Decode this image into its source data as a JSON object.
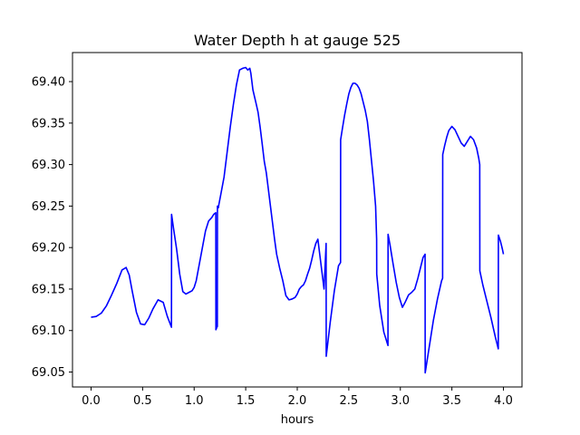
{
  "chart_data": {
    "type": "line",
    "title": "Water Depth h at gauge 525",
    "xlabel": "hours",
    "ylabel": "",
    "xlim": [
      -0.18,
      4.18
    ],
    "ylim": [
      69.032,
      69.435
    ],
    "grid": false,
    "line_color": "#0000ff",
    "xticks": [
      {
        "value": 0.0,
        "label": "0.0"
      },
      {
        "value": 0.5,
        "label": "0.5"
      },
      {
        "value": 1.0,
        "label": "1.0"
      },
      {
        "value": 1.5,
        "label": "1.5"
      },
      {
        "value": 2.0,
        "label": "2.0"
      },
      {
        "value": 2.5,
        "label": "2.5"
      },
      {
        "value": 3.0,
        "label": "3.0"
      },
      {
        "value": 3.5,
        "label": "3.5"
      },
      {
        "value": 4.0,
        "label": "4.0"
      }
    ],
    "yticks": [
      {
        "value": 69.05,
        "label": "69.05"
      },
      {
        "value": 69.1,
        "label": "69.10"
      },
      {
        "value": 69.15,
        "label": "69.15"
      },
      {
        "value": 69.2,
        "label": "69.20"
      },
      {
        "value": 69.25,
        "label": "69.25"
      },
      {
        "value": 69.3,
        "label": "69.30"
      },
      {
        "value": 69.35,
        "label": "69.35"
      },
      {
        "value": 69.4,
        "label": "69.40"
      }
    ],
    "series": [
      {
        "x": [
          0.0,
          0.05,
          0.1,
          0.15,
          0.2,
          0.25,
          0.3,
          0.34,
          0.37,
          0.4,
          0.44,
          0.48,
          0.52,
          0.56,
          0.6,
          0.65,
          0.7,
          0.74,
          0.78,
          0.781,
          0.8,
          0.83,
          0.86,
          0.89,
          0.92,
          0.95,
          0.98,
          1.0,
          1.02,
          1.05,
          1.08,
          1.11,
          1.14,
          1.17,
          1.19,
          1.21,
          1.211,
          1.22,
          1.225,
          1.226,
          1.235,
          1.24,
          1.26,
          1.29,
          1.32,
          1.35,
          1.38,
          1.41,
          1.44,
          1.47,
          1.5,
          1.52,
          1.54,
          1.55,
          1.57,
          1.6,
          1.62,
          1.64,
          1.66,
          1.68,
          1.7,
          1.72,
          1.74,
          1.76,
          1.78,
          1.8,
          1.83,
          1.86,
          1.89,
          1.92,
          1.95,
          1.98,
          2.0,
          2.02,
          2.04,
          2.06,
          2.08,
          2.1,
          2.12,
          2.14,
          2.16,
          2.18,
          2.2,
          2.22,
          2.24,
          2.26,
          2.28,
          2.281,
          2.32,
          2.36,
          2.4,
          2.42,
          2.421,
          2.44,
          2.46,
          2.48,
          2.5,
          2.52,
          2.54,
          2.56,
          2.58,
          2.6,
          2.62,
          2.64,
          2.66,
          2.68,
          2.7,
          2.72,
          2.74,
          2.76,
          2.77,
          2.771,
          2.8,
          2.84,
          2.88,
          2.881,
          2.9,
          2.93,
          2.96,
          2.99,
          3.02,
          3.05,
          3.08,
          3.11,
          3.14,
          3.17,
          3.2,
          3.22,
          3.24,
          3.241,
          3.28,
          3.32,
          3.36,
          3.4,
          3.41,
          3.411,
          3.43,
          3.45,
          3.47,
          3.5,
          3.53,
          3.56,
          3.59,
          3.62,
          3.65,
          3.68,
          3.71,
          3.74,
          3.76,
          3.77,
          3.771,
          3.8,
          3.84,
          3.88,
          3.92,
          3.95,
          3.951,
          3.97,
          3.99,
          4.0
        ],
        "y": [
          69.116,
          69.117,
          69.121,
          69.13,
          69.143,
          69.157,
          69.173,
          69.176,
          69.167,
          69.147,
          69.122,
          69.108,
          69.107,
          69.115,
          69.126,
          69.137,
          69.134,
          69.117,
          69.104,
          69.24,
          69.223,
          69.198,
          69.168,
          69.147,
          69.144,
          69.146,
          69.148,
          69.152,
          69.16,
          69.18,
          69.2,
          69.22,
          69.232,
          69.236,
          69.24,
          69.242,
          69.101,
          69.104,
          69.105,
          69.25,
          69.248,
          69.252,
          69.265,
          69.285,
          69.315,
          69.345,
          69.372,
          69.396,
          69.414,
          69.416,
          69.417,
          69.414,
          69.416,
          69.41,
          69.39,
          69.374,
          69.363,
          69.345,
          69.325,
          69.304,
          69.29,
          69.27,
          69.25,
          69.23,
          69.21,
          69.192,
          69.175,
          69.16,
          69.142,
          69.137,
          69.138,
          69.14,
          69.144,
          69.15,
          69.153,
          69.155,
          69.16,
          69.168,
          69.175,
          69.185,
          69.196,
          69.205,
          69.21,
          69.19,
          69.17,
          69.15,
          69.205,
          69.069,
          69.11,
          69.148,
          69.178,
          69.182,
          69.33,
          69.345,
          69.36,
          69.373,
          69.385,
          69.393,
          69.398,
          69.398,
          69.396,
          69.392,
          69.385,
          69.375,
          69.365,
          69.352,
          69.33,
          69.305,
          69.28,
          69.25,
          69.21,
          69.168,
          69.13,
          69.098,
          69.082,
          69.216,
          69.203,
          69.18,
          69.158,
          69.14,
          69.128,
          69.135,
          69.143,
          69.146,
          69.15,
          69.163,
          69.178,
          69.188,
          69.192,
          69.049,
          69.08,
          69.112,
          69.138,
          69.16,
          69.163,
          69.312,
          69.323,
          69.333,
          69.341,
          69.346,
          69.342,
          69.334,
          69.326,
          69.322,
          69.328,
          69.334,
          69.33,
          69.32,
          69.308,
          69.3,
          69.172,
          69.155,
          69.135,
          69.115,
          69.093,
          69.078,
          69.215,
          69.208,
          69.198,
          69.192
        ]
      }
    ]
  }
}
